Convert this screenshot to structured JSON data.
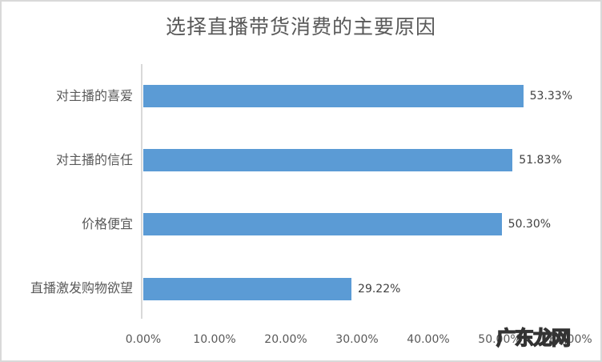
{
  "chart_data": {
    "type": "bar",
    "orientation": "horizontal",
    "title": "选择直播带货消费的主要原因",
    "xlabel": "",
    "ylabel": "",
    "categories": [
      "对主播的喜爱",
      "对主播的信任",
      "价格便宜",
      "直播激发购物欲望"
    ],
    "values": [
      53.33,
      51.83,
      50.3,
      29.22
    ],
    "value_labels": [
      "53.33%",
      "51.83%",
      "50.30%",
      "29.22%"
    ],
    "xlim": [
      0,
      60
    ],
    "x_ticks": [
      "0.00%",
      "10.00%",
      "20.00%",
      "30.00%",
      "40.00%",
      "50.00%",
      "60.00%"
    ],
    "grid": false,
    "legend": null,
    "bar_color": "#5b9bd5"
  },
  "watermark": "广东龙网"
}
